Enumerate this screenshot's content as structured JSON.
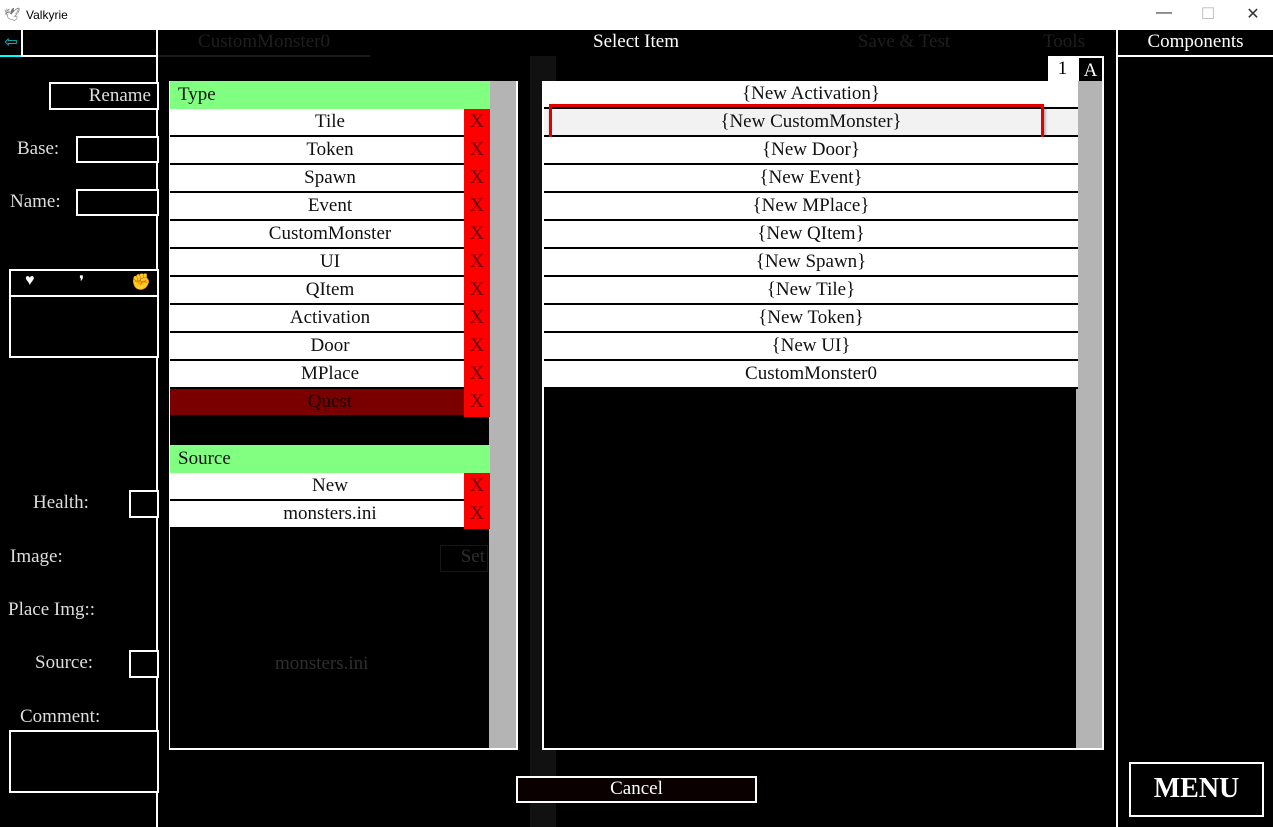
{
  "window": {
    "title": "Valkyrie",
    "minimize": "—",
    "maximize": "☐",
    "close": "✕"
  },
  "header": {
    "back_icon": "⇦",
    "dim_tab": "CustomMonster0",
    "title": "Select Item",
    "dim_save": "Save & Test",
    "dim_tools": "Tools",
    "components": "Components"
  },
  "left": {
    "rename": "Rename",
    "base_label": "Base:",
    "name_label": "Name:",
    "health_label": "Health:",
    "image_label": "Image:",
    "place_img_label": "Place Img::",
    "source_label": "Source:",
    "comment_label": "Comment:",
    "dim_source_value": "monsters.ini",
    "dim_set": "Set"
  },
  "type_panel": {
    "header": "Type",
    "remove_label": "X",
    "items": [
      "Tile",
      "Token",
      "Spawn",
      "Event",
      "CustomMonster",
      "UI",
      "QItem",
      "Activation",
      "Door",
      "MPlace",
      "Quest"
    ],
    "selected": "Quest"
  },
  "source_panel": {
    "header": "Source",
    "items": [
      "New",
      "monsters.ini"
    ]
  },
  "item_list": {
    "sort_num": "1",
    "sort_alpha": "A",
    "items": [
      "{New Activation}",
      "{New CustomMonster}",
      "{New Door}",
      "{New Event}",
      "{New MPlace}",
      "{New QItem}",
      "{New Spawn}",
      "{New Tile}",
      "{New Token}",
      "{New UI}",
      "CustomMonster0"
    ],
    "highlighted": "{New CustomMonster}"
  },
  "cancel": "Cancel",
  "menu": "MENU",
  "colors": {
    "type_header": "#80ff80",
    "remove": "#ff0000",
    "selected_type": "#7a0000",
    "highlight_border": "#e00000",
    "back_icon": "#00d0d0"
  }
}
